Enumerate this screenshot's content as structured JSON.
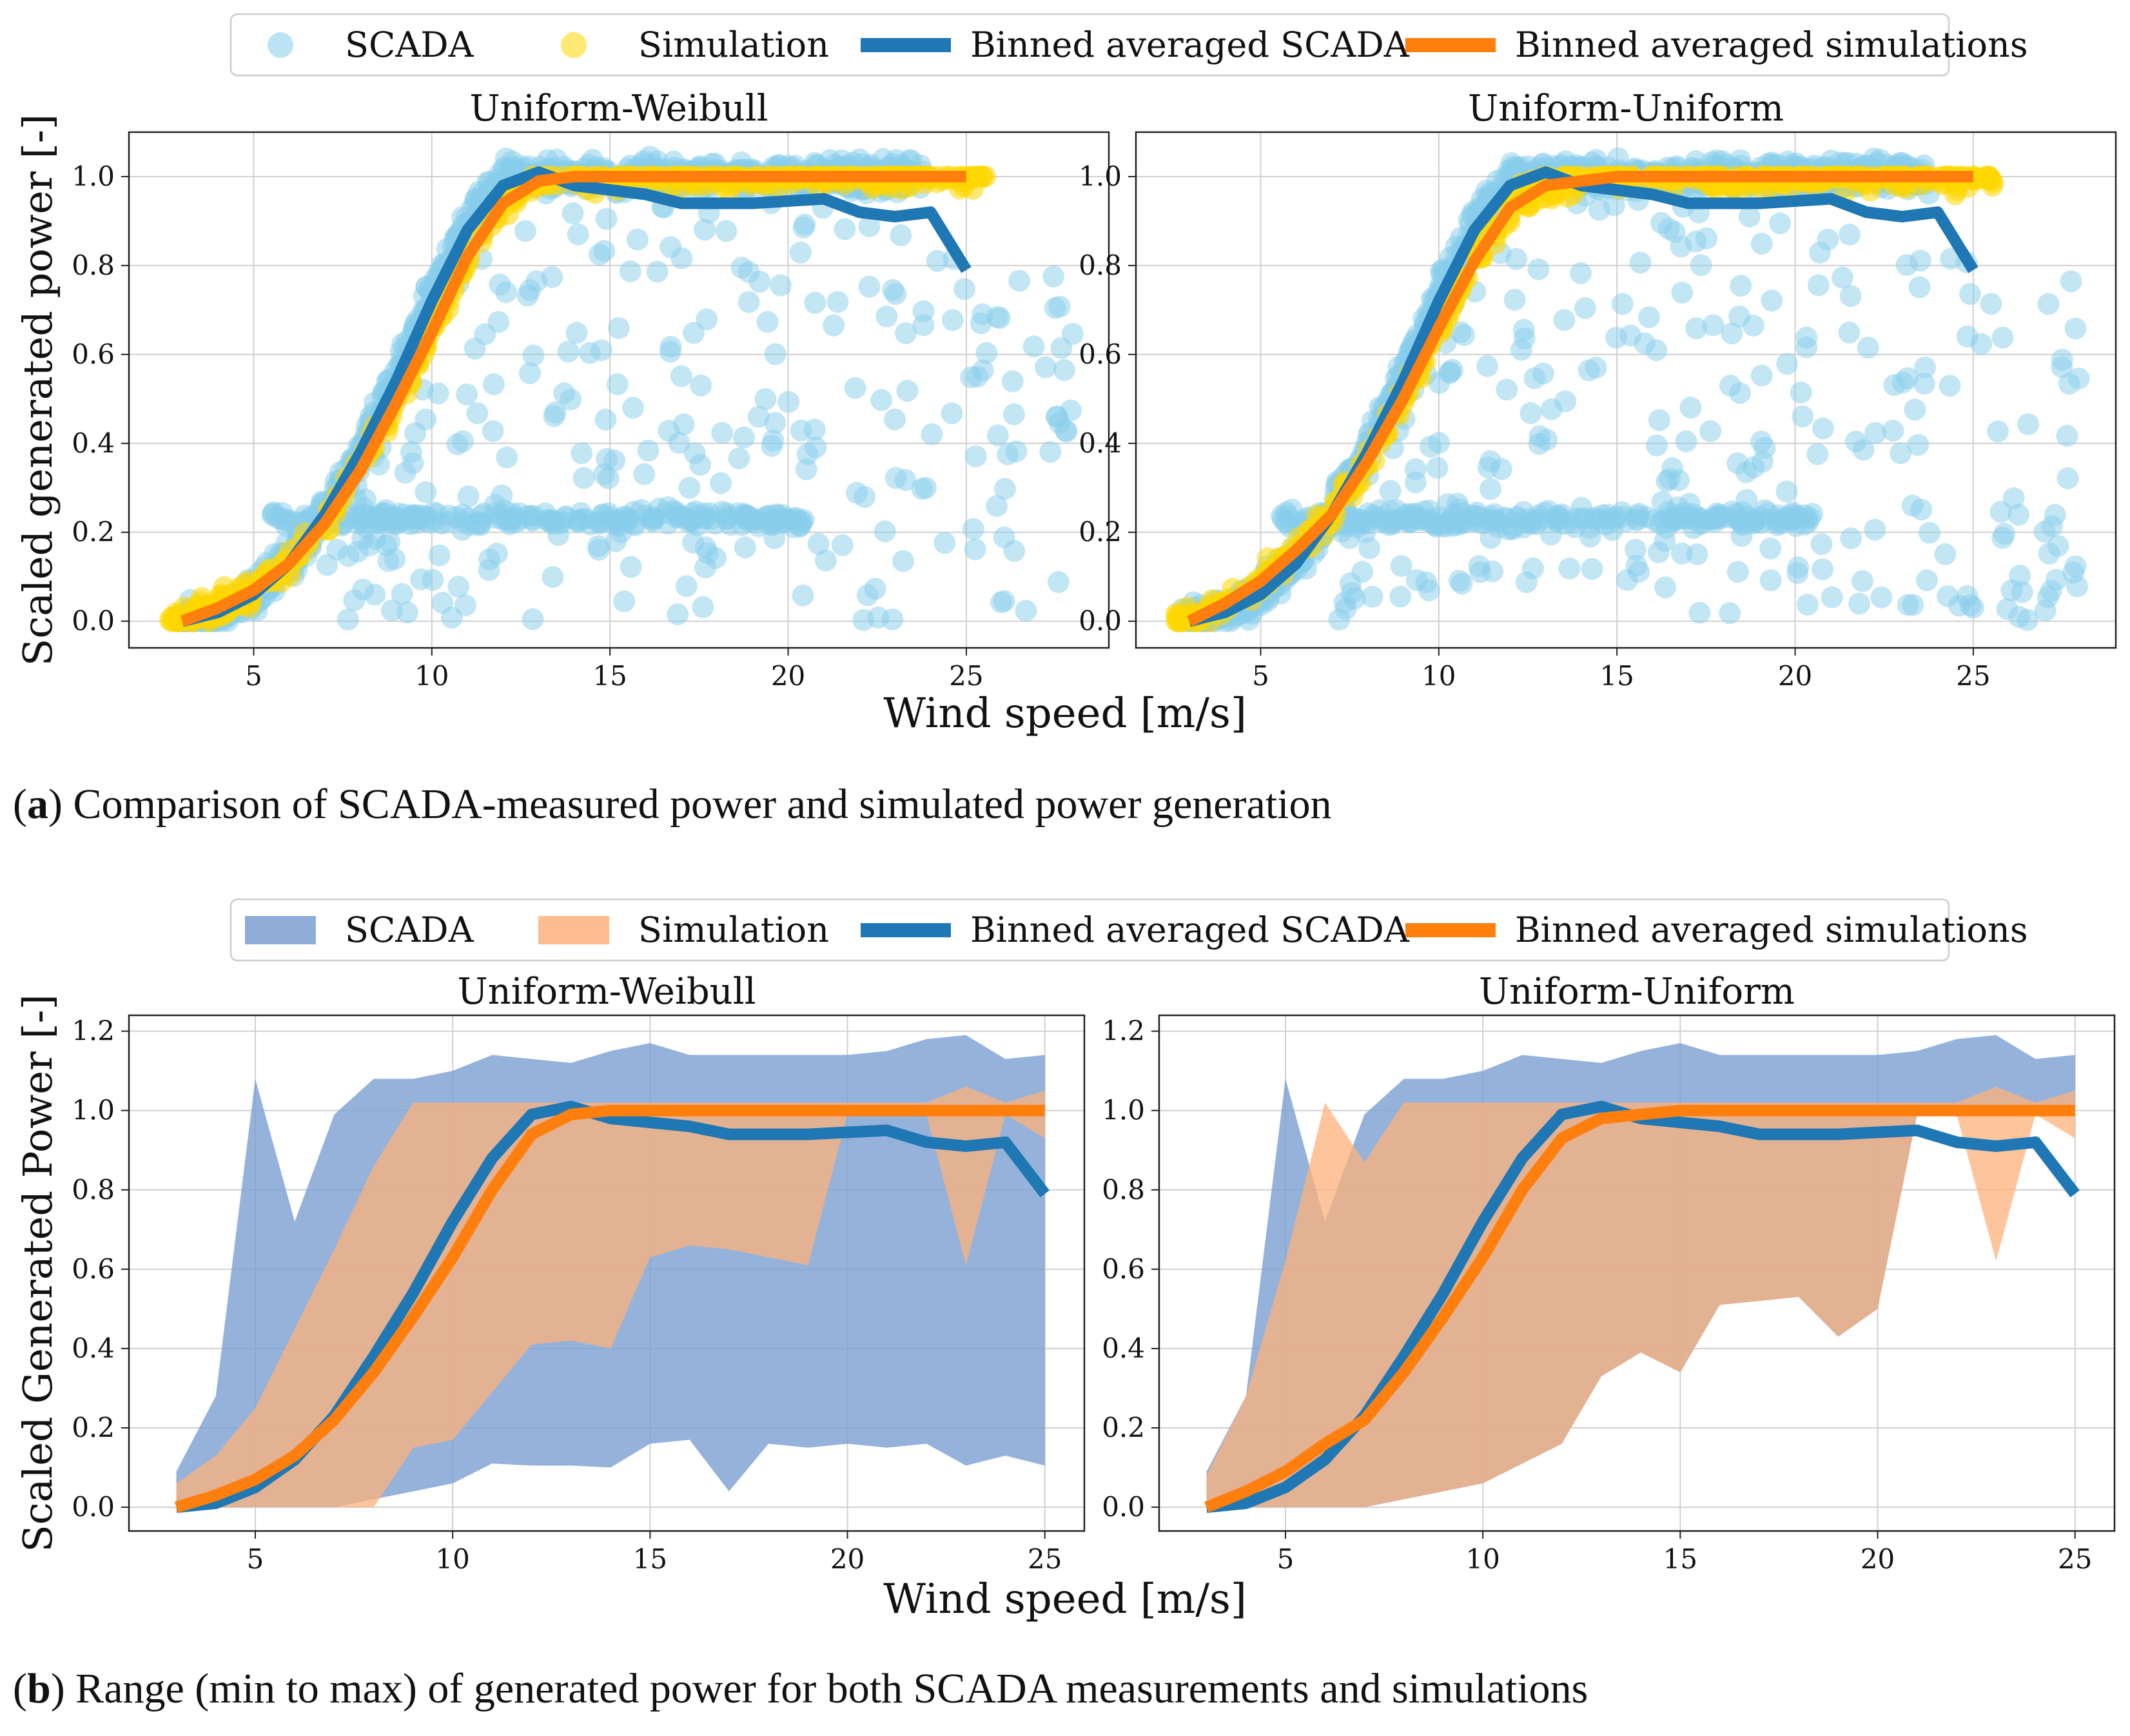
{
  "figure": {
    "caption_a_label": "a",
    "caption_a_text": ") Comparison of SCADA-measured power and simulated power generation",
    "caption_b_label": "b",
    "caption_b_text": ") Range (min to max) of generated power for both SCADA measurements and simulations",
    "caption_open_paren": "("
  },
  "colors": {
    "scada_points": "#87ceeb",
    "sim_points": "#ffd700",
    "binned_scada": "#1f77b4",
    "binned_sim": "#ff7f0e",
    "scada_range": "#7b9fd1",
    "sim_range": "#fdb27b"
  },
  "legend_a": [
    "SCADA",
    "Simulation",
    "Binned averaged SCADA",
    "Binned averaged simulations"
  ],
  "legend_b": [
    "SCADA",
    "Simulation",
    "Binned averaged SCADA",
    "Binned averaged simulations"
  ],
  "chart_data": [
    {
      "type": "scatter",
      "title": "Uniform-Weibull",
      "xlabel": "Wind speed [m/s]",
      "ylabel": "Scaled generated power [-]",
      "xlim": [
        1.5,
        29
      ],
      "ylim": [
        -0.06,
        1.1
      ],
      "xticks": [
        5,
        10,
        15,
        20,
        25
      ],
      "yticks": [
        0.0,
        0.2,
        0.4,
        0.6,
        0.8,
        1.0
      ],
      "grid": true,
      "series": [
        {
          "name": "Binned averaged SCADA",
          "x": [
            3,
            4,
            5,
            6,
            7,
            8,
            9,
            10,
            11,
            12,
            13,
            14,
            15,
            16,
            17,
            18,
            19,
            20,
            21,
            22,
            23,
            24,
            25
          ],
          "y": [
            0.0,
            0.02,
            0.06,
            0.13,
            0.24,
            0.38,
            0.54,
            0.72,
            0.88,
            0.98,
            1.01,
            0.98,
            0.97,
            0.96,
            0.94,
            0.94,
            0.94,
            0.945,
            0.95,
            0.92,
            0.91,
            0.92,
            0.79
          ]
        },
        {
          "name": "Binned averaged simulations",
          "x": [
            3,
            4,
            5,
            6,
            7,
            8,
            9,
            10,
            11,
            12,
            13,
            14,
            15,
            16,
            17,
            18,
            19,
            20,
            21,
            22,
            23,
            24,
            25
          ],
          "y": [
            0.0,
            0.03,
            0.07,
            0.13,
            0.22,
            0.34,
            0.49,
            0.65,
            0.82,
            0.94,
            0.99,
            1.0,
            1.0,
            1.0,
            1.0,
            1.0,
            1.0,
            1.0,
            1.0,
            1.0,
            1.0,
            1.0,
            1.0
          ]
        }
      ]
    },
    {
      "type": "scatter",
      "title": "Uniform-Uniform",
      "xlabel": "Wind speed [m/s]",
      "ylabel": "",
      "xlim": [
        1.5,
        29
      ],
      "ylim": [
        -0.06,
        1.1
      ],
      "xticks": [
        5,
        10,
        15,
        20,
        25
      ],
      "yticks": [
        0.0,
        0.2,
        0.4,
        0.6,
        0.8,
        1.0
      ],
      "grid": true,
      "series": [
        {
          "name": "Binned averaged SCADA",
          "x": [
            3,
            4,
            5,
            6,
            7,
            8,
            9,
            10,
            11,
            12,
            13,
            14,
            15,
            16,
            17,
            18,
            19,
            20,
            21,
            22,
            23,
            24,
            25
          ],
          "y": [
            0.0,
            0.02,
            0.06,
            0.13,
            0.24,
            0.38,
            0.54,
            0.72,
            0.88,
            0.98,
            1.01,
            0.98,
            0.97,
            0.96,
            0.94,
            0.94,
            0.94,
            0.945,
            0.95,
            0.92,
            0.91,
            0.92,
            0.79
          ]
        },
        {
          "name": "Binned averaged simulations",
          "x": [
            3,
            4,
            5,
            6,
            7,
            8,
            9,
            10,
            11,
            12,
            13,
            14,
            15,
            16,
            17,
            18,
            19,
            20,
            21,
            22,
            23,
            24,
            25
          ],
          "y": [
            0.0,
            0.04,
            0.09,
            0.16,
            0.24,
            0.36,
            0.5,
            0.66,
            0.81,
            0.93,
            0.98,
            0.99,
            1.0,
            1.0,
            1.0,
            1.0,
            1.0,
            1.0,
            1.0,
            1.0,
            1.0,
            1.0,
            1.0
          ]
        }
      ]
    },
    {
      "type": "area",
      "title": "Uniform-Weibull",
      "xlabel": "Wind speed [m/s]",
      "ylabel": "Scaled Generated Power [-]",
      "xlim": [
        1.8,
        26
      ],
      "ylim": [
        -0.06,
        1.24
      ],
      "xticks": [
        5,
        10,
        15,
        20,
        25
      ],
      "yticks": [
        0.0,
        0.2,
        0.4,
        0.6,
        0.8,
        1.0,
        1.2
      ],
      "grid": true,
      "x": [
        3,
        4,
        5,
        6,
        7,
        8,
        9,
        10,
        11,
        12,
        13,
        14,
        15,
        16,
        17,
        18,
        19,
        20,
        21,
        22,
        23,
        24,
        25
      ],
      "scada_min": [
        0.0,
        0.0,
        0.0,
        0.0,
        0.0,
        0.02,
        0.04,
        0.06,
        0.11,
        0.105,
        0.105,
        0.1,
        0.16,
        0.17,
        0.04,
        0.16,
        0.15,
        0.16,
        0.15,
        0.16,
        0.105,
        0.13,
        0.105
      ],
      "scada_max": [
        0.09,
        0.28,
        1.08,
        0.72,
        0.99,
        1.08,
        1.08,
        1.1,
        1.14,
        1.13,
        1.12,
        1.15,
        1.17,
        1.14,
        1.14,
        1.14,
        1.14,
        1.14,
        1.15,
        1.18,
        1.19,
        1.13,
        1.14
      ],
      "sim_min": [
        0.0,
        0.0,
        0.0,
        0.0,
        0.0,
        0.0,
        0.15,
        0.17,
        0.29,
        0.41,
        0.42,
        0.4,
        0.63,
        0.66,
        0.65,
        0.63,
        0.61,
        0.99,
        0.99,
        0.99,
        0.61,
        0.99,
        0.93
      ],
      "sim_max": [
        0.06,
        0.13,
        0.25,
        0.45,
        0.65,
        0.86,
        1.02,
        1.02,
        1.02,
        1.02,
        1.02,
        1.02,
        1.02,
        1.02,
        1.02,
        1.02,
        1.02,
        1.02,
        1.02,
        1.02,
        1.06,
        1.02,
        1.05
      ],
      "series": [
        {
          "name": "Binned averaged SCADA",
          "values": [
            0.0,
            0.01,
            0.05,
            0.12,
            0.23,
            0.38,
            0.54,
            0.72,
            0.88,
            0.99,
            1.01,
            0.98,
            0.97,
            0.96,
            0.94,
            0.94,
            0.94,
            0.945,
            0.95,
            0.92,
            0.91,
            0.92,
            0.79
          ]
        },
        {
          "name": "Binned averaged simulations",
          "values": [
            0.0,
            0.03,
            0.07,
            0.13,
            0.22,
            0.34,
            0.48,
            0.63,
            0.8,
            0.94,
            0.99,
            1.0,
            1.0,
            1.0,
            1.0,
            1.0,
            1.0,
            1.0,
            1.0,
            1.0,
            1.0,
            1.0,
            1.0
          ]
        }
      ]
    },
    {
      "type": "area",
      "title": "Uniform-Uniform",
      "xlabel": "Wind speed [m/s]",
      "ylabel": "",
      "xlim": [
        1.8,
        26
      ],
      "ylim": [
        -0.06,
        1.24
      ],
      "xticks": [
        5,
        10,
        15,
        20,
        25
      ],
      "yticks": [
        0.0,
        0.2,
        0.4,
        0.6,
        0.8,
        1.0,
        1.2
      ],
      "grid": true,
      "x": [
        3,
        4,
        5,
        6,
        7,
        8,
        9,
        10,
        11,
        12,
        13,
        14,
        15,
        16,
        17,
        18,
        19,
        20,
        21,
        22,
        23,
        24,
        25
      ],
      "scada_min": [
        0.0,
        0.0,
        0.0,
        0.0,
        0.0,
        0.02,
        0.04,
        0.06,
        0.11,
        0.16,
        0.33,
        0.39,
        0.34,
        0.51,
        0.52,
        0.53,
        0.43,
        0.5,
        0.99,
        0.99,
        0.99,
        0.99,
        0.99
      ],
      "scada_max": [
        0.09,
        0.28,
        1.08,
        0.72,
        0.99,
        1.08,
        1.08,
        1.1,
        1.14,
        1.13,
        1.12,
        1.15,
        1.17,
        1.14,
        1.14,
        1.14,
        1.14,
        1.14,
        1.15,
        1.18,
        1.19,
        1.13,
        1.14
      ],
      "sim_min": [
        0.0,
        0.0,
        0.0,
        0.0,
        0.0,
        0.02,
        0.04,
        0.06,
        0.11,
        0.16,
        0.33,
        0.39,
        0.34,
        0.51,
        0.52,
        0.53,
        0.43,
        0.5,
        0.99,
        0.99,
        0.62,
        0.99,
        0.93
      ],
      "sim_max": [
        0.08,
        0.28,
        0.62,
        1.02,
        0.87,
        1.02,
        1.02,
        1.02,
        1.02,
        1.02,
        1.02,
        1.02,
        1.02,
        1.02,
        1.02,
        1.02,
        1.02,
        1.02,
        1.02,
        1.02,
        1.06,
        1.02,
        1.05
      ],
      "series": [
        {
          "name": "Binned averaged SCADA",
          "values": [
            0.0,
            0.01,
            0.05,
            0.12,
            0.23,
            0.38,
            0.54,
            0.72,
            0.88,
            0.99,
            1.01,
            0.98,
            0.97,
            0.96,
            0.94,
            0.94,
            0.94,
            0.945,
            0.95,
            0.92,
            0.91,
            0.92,
            0.79
          ]
        },
        {
          "name": "Binned averaged simulations",
          "values": [
            0.0,
            0.04,
            0.09,
            0.16,
            0.22,
            0.34,
            0.48,
            0.63,
            0.8,
            0.93,
            0.98,
            0.99,
            1.0,
            1.0,
            1.0,
            1.0,
            1.0,
            1.0,
            1.0,
            1.0,
            1.0,
            1.0,
            1.0
          ]
        }
      ]
    }
  ]
}
